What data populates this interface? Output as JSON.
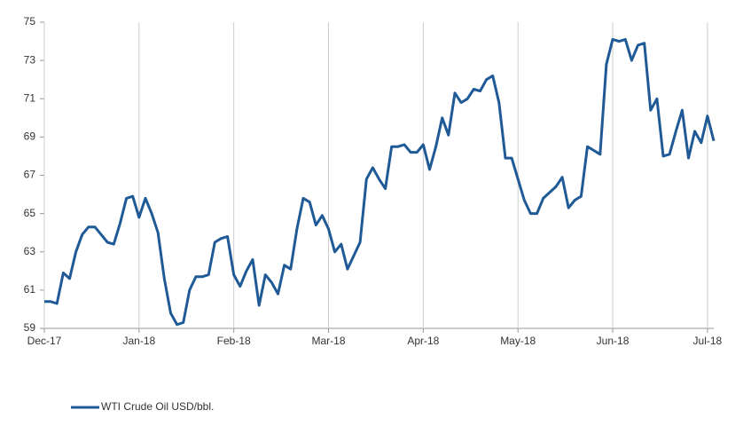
{
  "chart_data": {
    "type": "line",
    "categories": [
      "Dec-17",
      null,
      null,
      null,
      null,
      null,
      null,
      null,
      null,
      null,
      null,
      null,
      null,
      null,
      null,
      "Jan-18",
      null,
      null,
      null,
      null,
      null,
      null,
      null,
      null,
      null,
      null,
      null,
      null,
      null,
      null,
      "Feb-18",
      null,
      null,
      null,
      null,
      null,
      null,
      null,
      null,
      null,
      null,
      null,
      null,
      null,
      null,
      "Mar-18",
      null,
      null,
      null,
      null,
      null,
      null,
      null,
      null,
      null,
      null,
      null,
      null,
      null,
      null,
      "Apr-18",
      null,
      null,
      null,
      null,
      null,
      null,
      null,
      null,
      null,
      null,
      null,
      null,
      null,
      null,
      "May-18",
      null,
      null,
      null,
      null,
      null,
      null,
      null,
      null,
      null,
      null,
      null,
      null,
      null,
      null,
      "Jun-18",
      null,
      null,
      null,
      null,
      null,
      null,
      null,
      null,
      null,
      null,
      null,
      null,
      null,
      null,
      "Jul-18",
      null
    ],
    "series": [
      {
        "name": "WTI Crude Oil USD/bbl.",
        "color": "#1f5a96",
        "values": [
          60.4,
          60.4,
          60.3,
          61.9,
          61.6,
          63.0,
          63.9,
          64.3,
          64.3,
          63.9,
          63.5,
          63.4,
          64.5,
          65.8,
          65.9,
          64.8,
          65.8,
          65.0,
          64.0,
          61.6,
          59.8,
          59.2,
          59.3,
          61.0,
          61.7,
          61.7,
          61.8,
          63.5,
          63.7,
          63.8,
          61.8,
          61.2,
          62.0,
          62.6,
          60.2,
          61.8,
          61.4,
          60.8,
          62.3,
          62.1,
          64.2,
          65.8,
          65.6,
          64.4,
          64.9,
          64.2,
          63.0,
          63.4,
          62.1,
          62.8,
          63.5,
          66.8,
          67.4,
          66.8,
          66.3,
          68.5,
          68.5,
          68.6,
          68.2,
          68.2,
          68.6,
          67.3,
          68.5,
          70.0,
          69.1,
          71.3,
          70.8,
          71.0,
          71.5,
          71.4,
          72.0,
          72.2,
          70.8,
          67.9,
          67.9,
          66.8,
          65.7,
          65.0,
          65.0,
          65.8,
          66.1,
          66.4,
          66.9,
          65.3,
          65.7,
          65.9,
          68.5,
          68.3,
          68.1,
          72.8,
          74.1,
          74.0,
          74.1,
          73.0,
          73.8,
          73.9,
          70.4,
          71.0,
          68.0,
          68.1,
          69.3,
          70.4,
          67.9,
          69.3,
          68.7,
          70.1,
          68.8
        ]
      }
    ],
    "ylim": [
      59,
      75
    ],
    "yticks": [
      59,
      61,
      63,
      65,
      67,
      69,
      71,
      73,
      75
    ],
    "grid": "x",
    "legend": "bottom-left"
  }
}
